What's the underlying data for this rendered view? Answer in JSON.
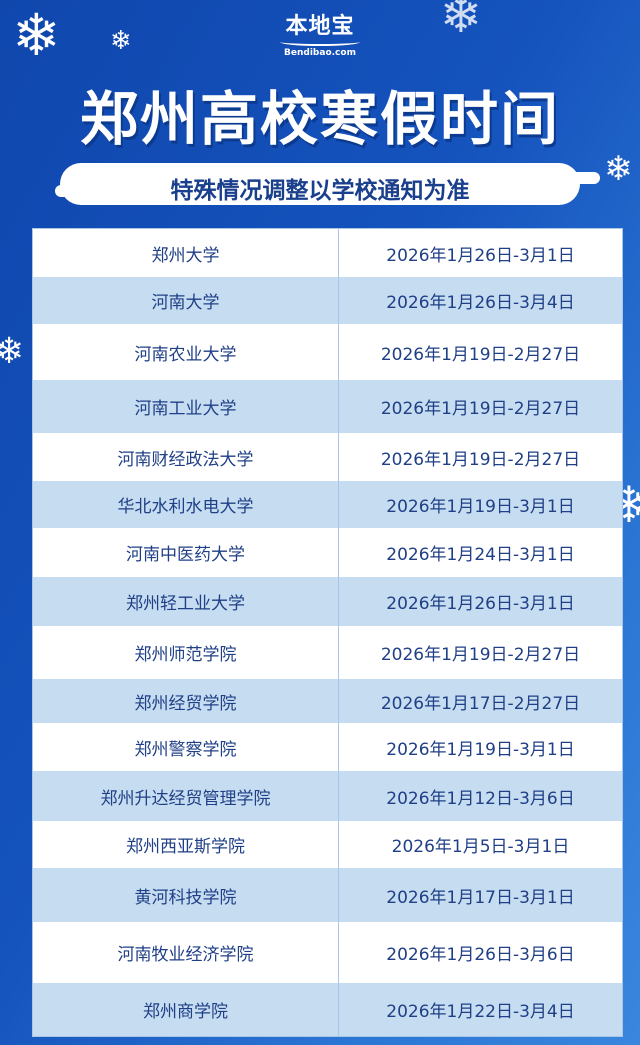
{
  "logo": {
    "name": "本地宝",
    "domain": "Bendibao.com"
  },
  "title": "郑州高校寒假时间",
  "subtitle": "特殊情况调整以学校通知为准",
  "colors": {
    "background": "#1553bd",
    "row_light": "#c6dcf1",
    "row_white": "#ffffff",
    "text": "#1f3f86"
  },
  "table": {
    "rows": [
      {
        "school": "郑州大学",
        "dates": "2026年1月26日-3月1日"
      },
      {
        "school": "河南大学",
        "dates": "2026年1月26日-3月4日"
      },
      {
        "school": "河南农业大学",
        "dates": "2026年1月19日-2月27日"
      },
      {
        "school": "河南工业大学",
        "dates": "2026年1月19日-2月27日"
      },
      {
        "school": "河南财经政法大学",
        "dates": "2026年1月19日-2月27日"
      },
      {
        "school": "华北水利水电大学",
        "dates": "2026年1月19日-3月1日"
      },
      {
        "school": "河南中医药大学",
        "dates": "2026年1月24日-3月1日"
      },
      {
        "school": "郑州轻工业大学",
        "dates": "2026年1月26日-3月1日"
      },
      {
        "school": "郑州师范学院",
        "dates": "2026年1月19日-2月27日"
      },
      {
        "school": "郑州经贸学院",
        "dates": "2026年1月17日-2月27日"
      },
      {
        "school": "郑州警察学院",
        "dates": "2026年1月19日-3月1日"
      },
      {
        "school": "郑州升达经贸管理学院",
        "dates": "2026年1月12日-3月6日"
      },
      {
        "school": "郑州西亚斯学院",
        "dates": "2026年1月5日-3月1日"
      },
      {
        "school": "黄河科技学院",
        "dates": "2026年1月17日-3月1日"
      },
      {
        "school": "河南牧业经济学院",
        "dates": "2026年1月26日-3月6日"
      },
      {
        "school": "郑州商学院",
        "dates": "2026年1月22日-3月4日"
      }
    ]
  }
}
